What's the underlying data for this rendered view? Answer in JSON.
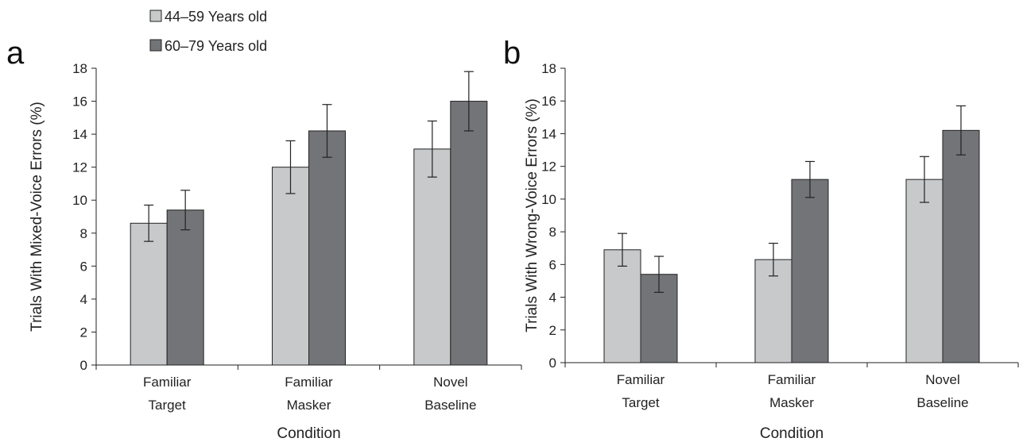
{
  "legend": {
    "items": [
      {
        "label": "44–59 Years old",
        "color": "#c8c9cb"
      },
      {
        "label": "60–79 Years old",
        "color": "#737477"
      }
    ]
  },
  "chart_data": [
    {
      "type": "bar",
      "panel": "a",
      "categories": [
        [
          "Familiar",
          "Target"
        ],
        [
          "Familiar",
          "Masker"
        ],
        [
          "Novel",
          "Baseline"
        ]
      ],
      "xlabel": "Condition",
      "ylabel": "Trials With Mixed-Voice Errors (%)",
      "ylim": [
        0,
        18
      ],
      "yticks": [
        0,
        2,
        4,
        6,
        8,
        10,
        12,
        14,
        16,
        18
      ],
      "series": [
        {
          "name": "44–59 Years old",
          "values": [
            8.6,
            12.0,
            13.1
          ],
          "errors": [
            1.1,
            1.6,
            1.7
          ]
        },
        {
          "name": "60–79 Years old",
          "values": [
            9.4,
            14.2,
            16.0
          ],
          "errors": [
            1.2,
            1.6,
            1.8
          ]
        }
      ]
    },
    {
      "type": "bar",
      "panel": "b",
      "categories": [
        [
          "Familiar",
          "Target"
        ],
        [
          "Familiar",
          "Masker"
        ],
        [
          "Novel",
          "Baseline"
        ]
      ],
      "xlabel": "Condition",
      "ylabel": "Trials With Wrong-Voice Errors (%)",
      "ylim": [
        0,
        18
      ],
      "yticks": [
        0,
        2,
        4,
        6,
        8,
        10,
        12,
        14,
        16,
        18
      ],
      "series": [
        {
          "name": "44–59 Years old",
          "values": [
            6.9,
            6.3,
            11.2
          ],
          "errors": [
            1.0,
            1.0,
            1.4
          ]
        },
        {
          "name": "60–79 Years old",
          "values": [
            5.4,
            11.2,
            14.2
          ],
          "errors": [
            1.1,
            1.1,
            1.5
          ]
        }
      ]
    }
  ]
}
